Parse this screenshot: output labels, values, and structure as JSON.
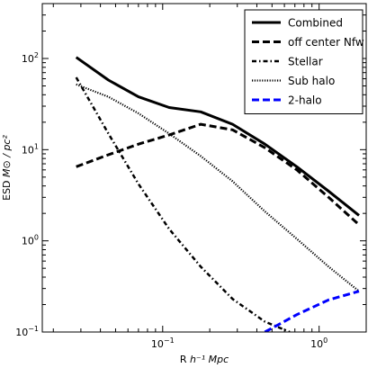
{
  "chart_data": {
    "type": "line",
    "xscale": "log",
    "yscale": "log",
    "xlim": [
      0.017,
      2.0
    ],
    "ylim": [
      0.1,
      400
    ],
    "xlabel_prefix": "R",
    "xlabel_units": "h⁻¹ Mpc",
    "ylabel_prefix": "ESD",
    "ylabel_units": "M⊙ / pc²",
    "legend_position": "top-right",
    "x_ticks": [
      {
        "value": 0.1,
        "base": "10",
        "exp": "−1"
      },
      {
        "value": 1.0,
        "base": "10",
        "exp": "0"
      }
    ],
    "y_ticks": [
      {
        "value": 0.1,
        "base": "10",
        "exp": "−1"
      },
      {
        "value": 1.0,
        "base": "10",
        "exp": "0"
      },
      {
        "value": 10.0,
        "base": "10",
        "exp": "1"
      },
      {
        "value": 100.0,
        "base": "10",
        "exp": "2"
      }
    ],
    "series": [
      {
        "name": "Combined",
        "color": "#000000",
        "style": "solid",
        "x": [
          0.028,
          0.045,
          0.07,
          0.11,
          0.175,
          0.28,
          0.45,
          0.72,
          1.15,
          1.8
        ],
        "y": [
          103,
          58,
          38,
          29,
          26,
          19,
          11.5,
          6.5,
          3.5,
          1.9
        ]
      },
      {
        "name": "off center Nfw",
        "color": "#000000",
        "style": "dashed",
        "x": [
          0.028,
          0.045,
          0.07,
          0.11,
          0.175,
          0.28,
          0.45,
          0.72,
          1.15,
          1.8
        ],
        "y": [
          6.5,
          8.8,
          11.5,
          14.5,
          19,
          16.5,
          10.5,
          6.0,
          3.0,
          1.5
        ]
      },
      {
        "name": "Stellar",
        "color": "#000000",
        "style": "dashdot",
        "x": [
          0.028,
          0.045,
          0.07,
          0.11,
          0.175,
          0.28,
          0.45,
          0.65
        ],
        "y": [
          62,
          15,
          4.2,
          1.35,
          0.52,
          0.23,
          0.13,
          0.1
        ]
      },
      {
        "name": "Sub halo",
        "color": "#000000",
        "style": "dotted",
        "x": [
          0.028,
          0.045,
          0.07,
          0.11,
          0.175,
          0.28,
          0.45,
          0.72,
          1.15,
          1.8
        ],
        "y": [
          52,
          38,
          25,
          15,
          8.5,
          4.5,
          2.1,
          1.05,
          0.52,
          0.28
        ]
      },
      {
        "name": "2-halo",
        "color": "#0000ff",
        "style": "dashed",
        "x": [
          0.45,
          0.72,
          1.15,
          1.8
        ],
        "y": [
          0.1,
          0.155,
          0.225,
          0.28
        ]
      }
    ]
  }
}
